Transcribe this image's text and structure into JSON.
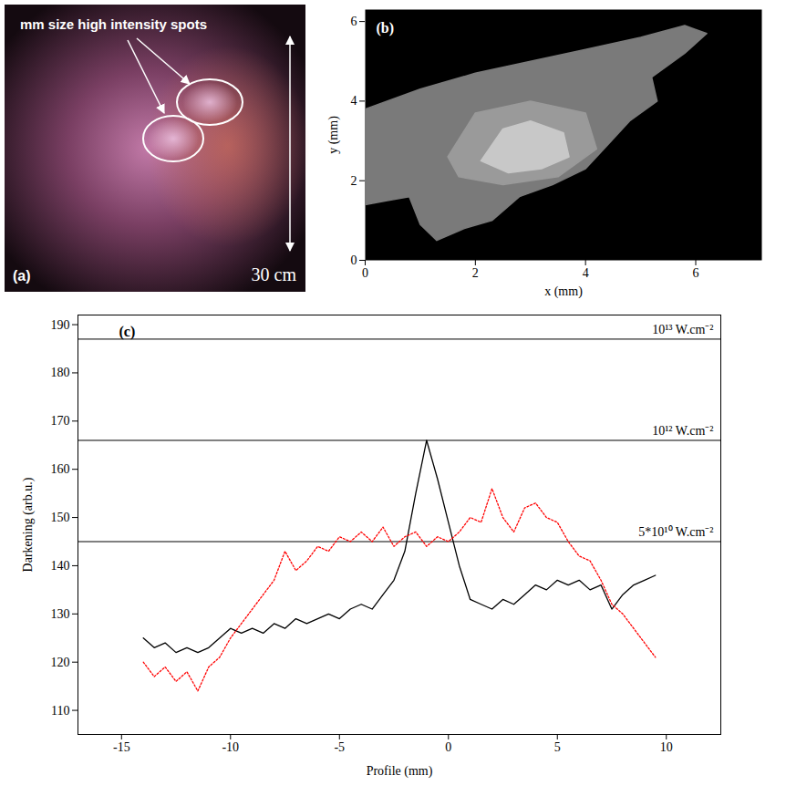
{
  "panel_a": {
    "label": "(a)",
    "annotation": "mm size high intensity spots",
    "scale_label": "30 cm"
  },
  "chart_data": [
    {
      "type": "image",
      "label": "(b)",
      "x_label": "x (mm)",
      "y_label": "y (mm)",
      "xlim": [
        0,
        7.2
      ],
      "ylim": [
        0,
        6.3
      ],
      "xticks": [
        0,
        2,
        4,
        6
      ],
      "yticks": [
        0,
        2,
        4,
        6
      ],
      "regions": [
        {
          "color": "#7a7a7a",
          "outline": [
            [
              0,
              3.8
            ],
            [
              1,
              4.3
            ],
            [
              2,
              4.7
            ],
            [
              3,
              5.0
            ],
            [
              4,
              5.3
            ],
            [
              5,
              5.6
            ],
            [
              5.8,
              5.9
            ],
            [
              6.2,
              5.7
            ],
            [
              5.8,
              5.2
            ],
            [
              5.2,
              4.6
            ],
            [
              5.3,
              4.0
            ],
            [
              4.8,
              3.5
            ],
            [
              4.4,
              2.9
            ],
            [
              4,
              2.3
            ],
            [
              3.4,
              1.9
            ],
            [
              2.8,
              1.6
            ],
            [
              2.3,
              1.0
            ],
            [
              1.8,
              0.8
            ],
            [
              1.3,
              0.5
            ],
            [
              1.0,
              0.9
            ],
            [
              0.8,
              1.6
            ],
            [
              0.4,
              1.5
            ],
            [
              0,
              1.4
            ]
          ]
        },
        {
          "color": "#9a9a9a",
          "outline": [
            [
              1.5,
              2.6
            ],
            [
              2,
              3.7
            ],
            [
              3,
              4.0
            ],
            [
              4,
              3.7
            ],
            [
              4.2,
              2.8
            ],
            [
              3.5,
              2.1
            ],
            [
              2.5,
              1.9
            ],
            [
              1.7,
              2.1
            ]
          ]
        },
        {
          "color": "#c8c8c8",
          "outline": [
            [
              2.1,
              2.5
            ],
            [
              2.5,
              3.3
            ],
            [
              3,
              3.5
            ],
            [
              3.6,
              3.2
            ],
            [
              3.7,
              2.6
            ],
            [
              3.2,
              2.3
            ],
            [
              2.6,
              2.2
            ]
          ]
        }
      ]
    },
    {
      "type": "line",
      "label": "(c)",
      "x_label": "Profile (mm)",
      "y_label": "Darkening (arb.u.)",
      "xlim": [
        -17,
        12.5
      ],
      "ylim": [
        105,
        192
      ],
      "xticks": [
        -15,
        -10,
        -5,
        0,
        5,
        10
      ],
      "yticks": [
        110,
        120,
        130,
        140,
        150,
        160,
        170,
        180,
        190
      ],
      "x": [
        -14,
        -13.5,
        -13,
        -12.5,
        -12,
        -11.5,
        -11,
        -10.5,
        -10,
        -9.5,
        -9,
        -8.5,
        -8,
        -7.5,
        -7,
        -6.5,
        -6,
        -5.5,
        -5,
        -4.5,
        -4,
        -3.5,
        -3,
        -2.5,
        -2,
        -1.5,
        -1,
        -0.5,
        0,
        0.5,
        1,
        1.5,
        2,
        2.5,
        3,
        3.5,
        4,
        4.5,
        5,
        5.5,
        6,
        6.5,
        7,
        7.5,
        8,
        8.5,
        9,
        9.5
      ],
      "series": [
        {
          "color": "#000000",
          "line_style": "solid",
          "values": [
            125,
            123,
            124,
            122,
            123,
            122,
            123,
            125,
            127,
            126,
            127,
            126,
            128,
            127,
            129,
            128,
            129,
            130,
            129,
            131,
            132,
            131,
            134,
            137,
            143,
            155,
            166,
            158,
            149,
            140,
            133,
            132,
            131,
            133,
            132,
            134,
            136,
            135,
            137,
            136,
            137,
            135,
            136,
            131,
            134,
            136,
            137,
            138
          ]
        },
        {
          "color": "#ff0000",
          "line_style": "dotted",
          "values": [
            120,
            117,
            119,
            116,
            118,
            114,
            119,
            121,
            125,
            128,
            131,
            134,
            137,
            143,
            139,
            141,
            144,
            143,
            146,
            145,
            147,
            145,
            148,
            144,
            146,
            147,
            144,
            146,
            145,
            147,
            150,
            149,
            156,
            150,
            147,
            152,
            153,
            150,
            149,
            145,
            142,
            141,
            137,
            132,
            130,
            127,
            124,
            121
          ]
        }
      ],
      "reference_lines": [
        {
          "value": 187,
          "label": "10¹³ W.cm⁻²"
        },
        {
          "value": 166,
          "label": "10¹² W.cm⁻²"
        },
        {
          "value": 145,
          "label": "5*10¹⁰ W.cm⁻²"
        }
      ]
    }
  ]
}
